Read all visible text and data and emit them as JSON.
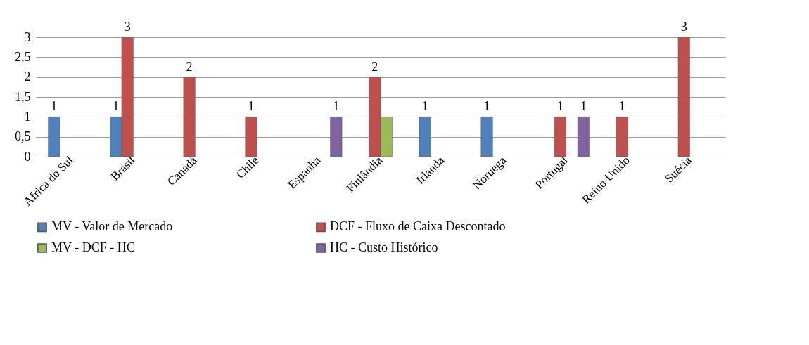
{
  "chart_data": {
    "type": "bar",
    "categories": [
      "Africa do Sul",
      "Brasil",
      "Canadá",
      "Chile",
      "Espanha",
      "Finlândia",
      "Irlanda",
      "Noruega",
      "Portugal",
      "Reino Unido",
      "Suécia"
    ],
    "series": [
      {
        "name": "MV - Valor de Mercado",
        "color": "#4f81bd",
        "values": [
          1,
          1,
          null,
          null,
          null,
          null,
          1,
          1,
          null,
          null,
          null
        ],
        "value_labels": [
          "1",
          "1",
          null,
          null,
          null,
          null,
          "1",
          "1",
          null,
          null,
          null
        ]
      },
      {
        "name": "DCF - Fluxo de Caixa Descontado",
        "color": "#c0504d",
        "values": [
          null,
          3,
          2,
          1,
          null,
          2,
          null,
          null,
          1,
          1,
          3
        ],
        "value_labels": [
          null,
          "3",
          "2",
          "1",
          null,
          "2",
          null,
          null,
          "1",
          "1",
          "3"
        ]
      },
      {
        "name": "MV - DCF - HC",
        "color": "#9bbb59",
        "values": [
          null,
          null,
          null,
          null,
          null,
          1,
          null,
          null,
          null,
          null,
          null
        ],
        "value_labels": [
          null,
          null,
          null,
          null,
          null,
          null,
          null,
          null,
          null,
          null,
          null
        ]
      },
      {
        "name": "HC - Custo Histórico",
        "color": "#8064a2",
        "values": [
          null,
          null,
          null,
          null,
          1,
          null,
          null,
          null,
          1,
          null,
          null
        ],
        "value_labels": [
          null,
          null,
          null,
          null,
          "1",
          null,
          null,
          null,
          "1",
          null,
          null
        ]
      }
    ],
    "ylim": [
      0,
      3
    ],
    "yticks": [
      0,
      {
        "value": 0.5,
        "label": "0,5"
      },
      1,
      {
        "value": 1.5,
        "label": "1,5"
      },
      2,
      {
        "value": 2.5,
        "label": "2,5"
      },
      3
    ],
    "grid": "y",
    "legend": "bottom"
  }
}
